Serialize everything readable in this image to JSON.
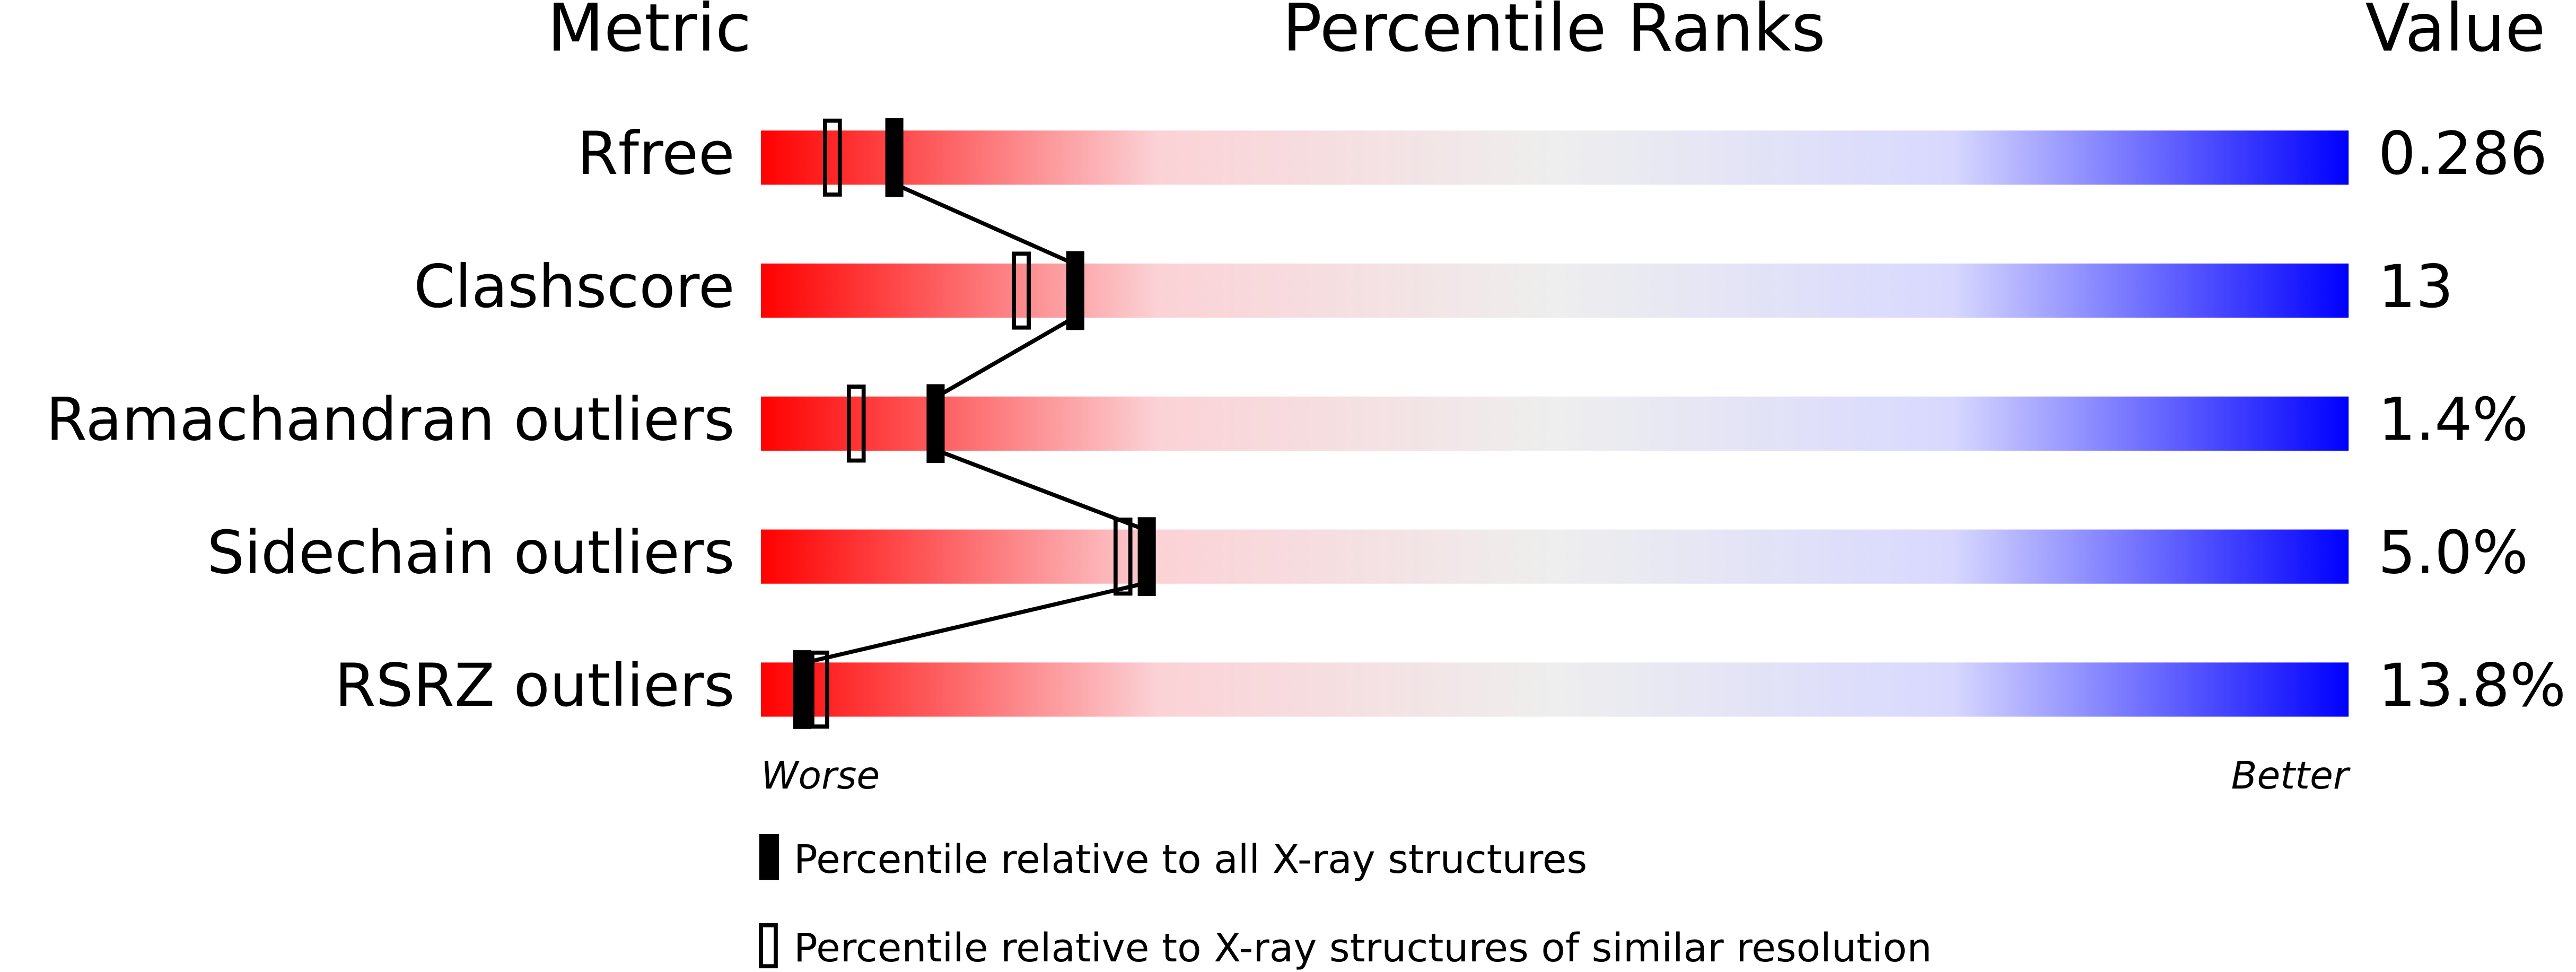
{
  "chart_data": {
    "type": "percentile",
    "title": "Percentile Ranks",
    "metric_header": "Metric",
    "value_header": "Value",
    "categories": [
      "Rfree",
      "Clashscore",
      "Ramachandran outliers",
      "Sidechain outliers",
      "RSRZ outliers"
    ],
    "metric_values": [
      "0.286",
      "13",
      "1.4%",
      "5.0%",
      "13.8%"
    ],
    "xlim": [
      0,
      100
    ],
    "worse_label": "Worse",
    "better_label": "Better",
    "gradient": [
      "#ff0000",
      "#fbd2d6",
      "#eeeeee",
      "#d8d8ff",
      "#0000ff"
    ],
    "series": [
      {
        "name": "Percentile relative to all X-ray structures",
        "style": "filled",
        "color": "#000000",
        "values": [
          8.4,
          19.8,
          11.0,
          24.3,
          2.6
        ]
      },
      {
        "name": "Percentile relative to X-ray structures of similar resolution",
        "style": "open",
        "color": "#000000",
        "values": [
          4.5,
          16.4,
          6.0,
          22.8,
          3.7
        ]
      }
    ]
  }
}
